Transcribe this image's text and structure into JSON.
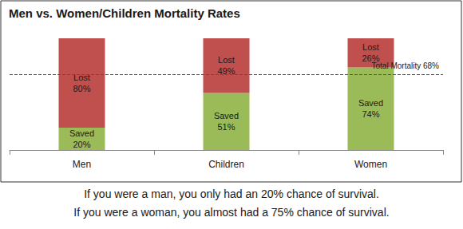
{
  "chart_data": {
    "type": "bar",
    "title": "Men vs. Women/Children Mortality Rates",
    "categories": [
      "Men",
      "Children",
      "Women"
    ],
    "series": [
      {
        "name": "Saved",
        "color": "#9bbb59",
        "values": [
          20,
          51,
          74
        ],
        "value_labels": [
          "Saved\n20%",
          "Saved\n51%",
          "Saved\n74%"
        ]
      },
      {
        "name": "Lost",
        "color": "#c0504d",
        "values": [
          80,
          49,
          26
        ],
        "value_labels": [
          "Lost\n80%",
          "Lost\n49%",
          "Lost\n26%"
        ]
      }
    ],
    "stacked": true,
    "data_labels": true,
    "ylim": [
      0,
      100
    ],
    "grid": false,
    "tick_labels": "x",
    "annotations": [
      {
        "y": 68,
        "text": "Total Mortality 68%",
        "line_style": "dashed"
      }
    ],
    "notes": [
      "If you were a man, you only had an 20% chance of survival.",
      "If you were a woman, you almost had a 75% chance of survival."
    ]
  }
}
